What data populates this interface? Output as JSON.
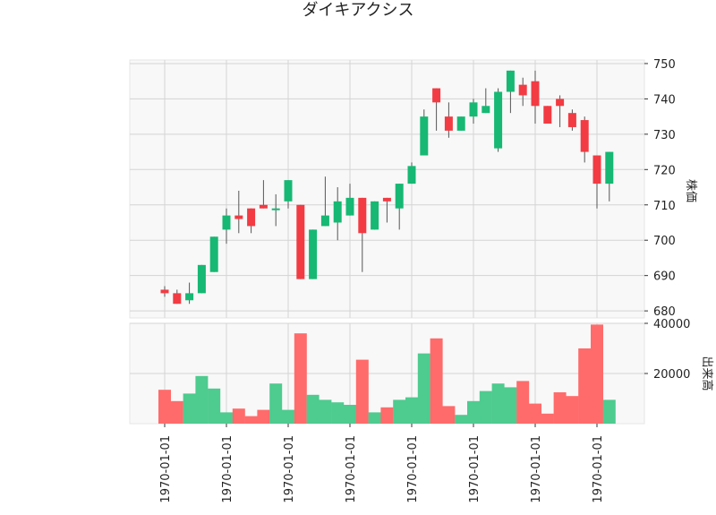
{
  "chart_data": {
    "type": "candlestick",
    "title": "ダイキアクシス",
    "ylabel_price": "株価",
    "ylabel_volume": "出来高",
    "x_tick_label": "1970-01-01",
    "price_ylim": [
      678,
      751
    ],
    "price_yticks": [
      680,
      690,
      700,
      710,
      720,
      730,
      740,
      750
    ],
    "volume_ylim": [
      0,
      40000
    ],
    "volume_yticks": [
      20000,
      40000
    ],
    "colors": {
      "up": "#16b873",
      "down": "#f23b43",
      "up_volume": "#4ecb8f",
      "down_volume": "#ff6b6b"
    },
    "grid": true,
    "candles": [
      {
        "o": 686,
        "h": 687,
        "l": 684,
        "c": 685,
        "v": 13500
      },
      {
        "o": 685,
        "h": 686,
        "l": 682,
        "c": 682,
        "v": 9000
      },
      {
        "o": 683,
        "h": 688,
        "l": 682,
        "c": 685,
        "v": 12000
      },
      {
        "o": 685,
        "h": 693,
        "l": 685,
        "c": 693,
        "v": 19000
      },
      {
        "o": 691,
        "h": 701,
        "l": 691,
        "c": 701,
        "v": 14000
      },
      {
        "o": 703,
        "h": 709,
        "l": 699,
        "c": 707,
        "v": 4500
      },
      {
        "o": 707,
        "h": 714,
        "l": 702,
        "c": 706,
        "v": 6000
      },
      {
        "o": 709,
        "h": 709,
        "l": 702,
        "c": 704,
        "v": 3000
      },
      {
        "o": 710,
        "h": 717,
        "l": 709,
        "c": 709,
        "v": 5500
      },
      {
        "o": 709,
        "h": 713,
        "l": 704,
        "c": 709,
        "v": 16000
      },
      {
        "o": 711,
        "h": 717,
        "l": 709,
        "c": 717,
        "v": 5500
      },
      {
        "o": 710,
        "h": 710,
        "l": 689,
        "c": 689,
        "v": 36000
      },
      {
        "o": 689,
        "h": 703,
        "l": 689,
        "c": 703,
        "v": 11500
      },
      {
        "o": 704,
        "h": 718,
        "l": 704,
        "c": 707,
        "v": 9500
      },
      {
        "o": 705,
        "h": 715,
        "l": 700,
        "c": 711,
        "v": 8500
      },
      {
        "o": 707,
        "h": 716,
        "l": 707,
        "c": 712,
        "v": 7500
      },
      {
        "o": 712,
        "h": 712,
        "l": 691,
        "c": 702,
        "v": 25500
      },
      {
        "o": 703,
        "h": 711,
        "l": 703,
        "c": 711,
        "v": 4500
      },
      {
        "o": 712,
        "h": 712,
        "l": 705,
        "c": 711,
        "v": 6500
      },
      {
        "o": 709,
        "h": 716,
        "l": 703,
        "c": 716,
        "v": 9500
      },
      {
        "o": 716,
        "h": 722,
        "l": 716,
        "c": 721,
        "v": 10500
      },
      {
        "o": 724,
        "h": 737,
        "l": 724,
        "c": 735,
        "v": 28000
      },
      {
        "o": 743,
        "h": 743,
        "l": 731,
        "c": 739,
        "v": 34000
      },
      {
        "o": 735,
        "h": 739,
        "l": 729,
        "c": 731,
        "v": 7000
      },
      {
        "o": 731,
        "h": 735,
        "l": 731,
        "c": 735,
        "v": 3500
      },
      {
        "o": 735,
        "h": 740,
        "l": 733,
        "c": 739,
        "v": 9000
      },
      {
        "o": 736,
        "h": 743,
        "l": 736,
        "c": 738,
        "v": 13000
      },
      {
        "o": 726,
        "h": 743,
        "l": 725,
        "c": 742,
        "v": 16000
      },
      {
        "o": 742,
        "h": 748,
        "l": 736,
        "c": 748,
        "v": 14500
      },
      {
        "o": 744,
        "h": 746,
        "l": 738,
        "c": 741,
        "v": 17000
      },
      {
        "o": 745,
        "h": 748,
        "l": 733,
        "c": 738,
        "v": 8000
      },
      {
        "o": 738,
        "h": 738,
        "l": 733,
        "c": 733,
        "v": 4000
      },
      {
        "o": 740,
        "h": 741,
        "l": 732,
        "c": 738,
        "v": 12500
      },
      {
        "o": 736,
        "h": 737,
        "l": 731,
        "c": 732,
        "v": 11000
      },
      {
        "o": 734,
        "h": 735,
        "l": 722,
        "c": 725,
        "v": 30000
      },
      {
        "o": 724,
        "h": 724,
        "l": 709,
        "c": 716,
        "v": 39500
      },
      {
        "o": 716,
        "h": 725,
        "l": 711,
        "c": 725,
        "v": 9500
      }
    ],
    "x_tick_candle_indices": [
      0,
      5,
      10,
      15,
      20,
      25,
      30,
      35
    ]
  }
}
